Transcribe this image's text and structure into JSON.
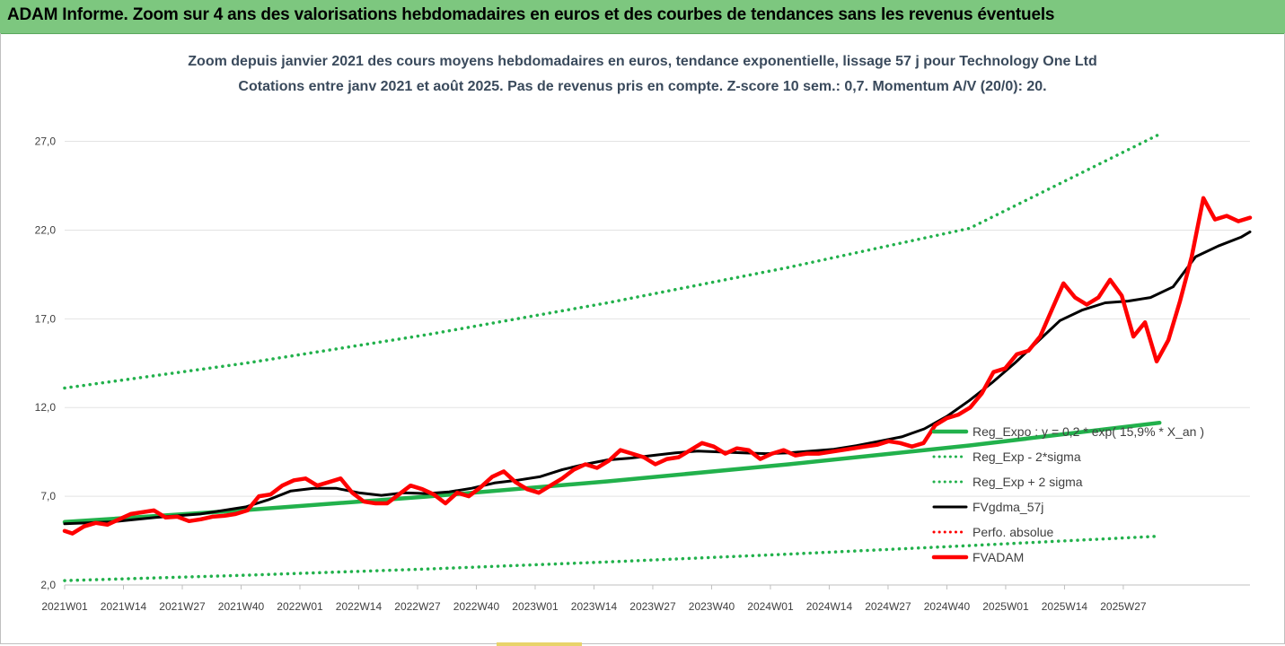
{
  "banner": {
    "title": "ADAM Informe. Zoom sur 4 ans des valorisations hebdomadaires en euros et des courbes de tendances sans les revenus éventuels"
  },
  "chart_data": {
    "type": "line",
    "title": "Zoom depuis janvier 2021 des cours moyens hebdomadaires en euros, tendance exponentielle, lissage 57 j pour Technology One Ltd",
    "subtitle": "Cotations entre janv 2021 et août 2025. Pas de revenus pris en compte. Z-score 10 sem.: 0,7. Momentum A/V (20/0): 20.",
    "xlabel": "",
    "ylabel": "",
    "ylim": [
      2.0,
      29.0
    ],
    "yticks": [
      "2,0",
      "7,0",
      "12,0",
      "17,0",
      "22,0",
      "27,0"
    ],
    "ytick_values": [
      2,
      7,
      12,
      17,
      22,
      27
    ],
    "xticks": [
      "2021W01",
      "2021W14",
      "2021W27",
      "2021W40",
      "2022W01",
      "2022W14",
      "2022W27",
      "2022W40",
      "2023W01",
      "2023W14",
      "2023W27",
      "2023W40",
      "2024W01",
      "2024W14",
      "2024W27",
      "2024W40",
      "2025W01",
      "2025W14",
      "2025W27"
    ],
    "grid": true,
    "legend_position": "right",
    "series": [
      {
        "name": "Reg_Expo : y = 0,2 * exp( 15,9% * X_an )",
        "color": "#22b14c",
        "style": "solid",
        "points": [
          [
            0,
            5.55
          ],
          [
            40,
            6.22
          ],
          [
            80,
            6.98
          ],
          [
            120,
            7.84
          ],
          [
            160,
            8.8
          ],
          [
            200,
            9.86
          ],
          [
            242,
            11.14
          ]
        ]
      },
      {
        "name": "Reg_Exp - 2*sigma",
        "color": "#22b14c",
        "style": "dotted",
        "points": [
          [
            0,
            2.25
          ],
          [
            40,
            2.55
          ],
          [
            80,
            2.9
          ],
          [
            120,
            3.3
          ],
          [
            160,
            3.74
          ],
          [
            200,
            4.22
          ],
          [
            242,
            4.75
          ]
        ]
      },
      {
        "name": "Reg_Exp + 2 sigma",
        "color": "#22b14c",
        "style": "dotted",
        "points": [
          [
            0,
            13.1
          ],
          [
            40,
            14.5
          ],
          [
            80,
            16.1
          ],
          [
            120,
            17.9
          ],
          [
            160,
            19.9
          ],
          [
            200,
            22.1
          ],
          [
            242,
            27.4
          ]
        ]
      },
      {
        "name": "FVgdma_57j",
        "color": "#000000",
        "style": "solid",
        "points": [
          [
            0,
            5.45
          ],
          [
            10,
            5.55
          ],
          [
            20,
            5.8
          ],
          [
            30,
            6.0
          ],
          [
            40,
            6.4
          ],
          [
            45,
            6.8
          ],
          [
            50,
            7.3
          ],
          [
            55,
            7.45
          ],
          [
            60,
            7.45
          ],
          [
            65,
            7.2
          ],
          [
            70,
            7.05
          ],
          [
            75,
            7.2
          ],
          [
            80,
            7.15
          ],
          [
            85,
            7.25
          ],
          [
            90,
            7.45
          ],
          [
            95,
            7.75
          ],
          [
            100,
            7.9
          ],
          [
            105,
            8.1
          ],
          [
            110,
            8.5
          ],
          [
            115,
            8.8
          ],
          [
            120,
            9.05
          ],
          [
            125,
            9.15
          ],
          [
            130,
            9.3
          ],
          [
            135,
            9.45
          ],
          [
            140,
            9.55
          ],
          [
            145,
            9.5
          ],
          [
            150,
            9.45
          ],
          [
            155,
            9.4
          ],
          [
            160,
            9.45
          ],
          [
            165,
            9.55
          ],
          [
            170,
            9.65
          ],
          [
            175,
            9.85
          ],
          [
            180,
            10.1
          ],
          [
            185,
            10.35
          ],
          [
            190,
            10.8
          ],
          [
            195,
            11.5
          ],
          [
            200,
            12.4
          ],
          [
            205,
            13.4
          ],
          [
            210,
            14.5
          ],
          [
            215,
            15.7
          ],
          [
            220,
            16.9
          ],
          [
            225,
            17.5
          ],
          [
            230,
            17.9
          ],
          [
            235,
            18.0
          ],
          [
            240,
            18.2
          ],
          [
            245,
            18.8
          ],
          [
            250,
            20.5
          ],
          [
            255,
            21.1
          ],
          [
            260,
            21.6
          ],
          [
            262,
            21.9
          ]
        ]
      },
      {
        "name": "Perfo. absolue",
        "color": "#ff0000",
        "style": "dotted",
        "points": []
      },
      {
        "name": "FVADAM",
        "color": "#ff0000",
        "style": "solid",
        "points": [
          [
            0,
            5.05
          ],
          [
            2,
            4.9
          ],
          [
            5,
            5.3
          ],
          [
            8,
            5.5
          ],
          [
            11,
            5.4
          ],
          [
            14,
            5.7
          ],
          [
            17,
            6.0
          ],
          [
            20,
            6.1
          ],
          [
            23,
            6.2
          ],
          [
            26,
            5.8
          ],
          [
            29,
            5.85
          ],
          [
            32,
            5.6
          ],
          [
            35,
            5.7
          ],
          [
            38,
            5.85
          ],
          [
            41,
            5.9
          ],
          [
            44,
            6.0
          ],
          [
            47,
            6.2
          ],
          [
            50,
            7.0
          ],
          [
            53,
            7.1
          ],
          [
            56,
            7.6
          ],
          [
            59,
            7.9
          ],
          [
            62,
            8.0
          ],
          [
            65,
            7.6
          ],
          [
            68,
            7.8
          ],
          [
            71,
            8.0
          ],
          [
            74,
            7.2
          ],
          [
            77,
            6.7
          ],
          [
            80,
            6.6
          ],
          [
            83,
            6.6
          ],
          [
            86,
            7.1
          ],
          [
            89,
            7.6
          ],
          [
            92,
            7.4
          ],
          [
            95,
            7.1
          ],
          [
            98,
            6.6
          ],
          [
            101,
            7.2
          ],
          [
            104,
            7.0
          ],
          [
            107,
            7.5
          ],
          [
            110,
            8.1
          ],
          [
            113,
            8.4
          ],
          [
            116,
            7.8
          ],
          [
            119,
            7.4
          ],
          [
            122,
            7.2
          ],
          [
            125,
            7.6
          ],
          [
            128,
            8.0
          ],
          [
            131,
            8.5
          ],
          [
            134,
            8.8
          ],
          [
            137,
            8.6
          ],
          [
            140,
            9.0
          ],
          [
            143,
            9.6
          ],
          [
            146,
            9.4
          ],
          [
            149,
            9.2
          ],
          [
            152,
            8.8
          ],
          [
            155,
            9.1
          ],
          [
            158,
            9.2
          ],
          [
            161,
            9.6
          ],
          [
            164,
            10.0
          ],
          [
            167,
            9.8
          ],
          [
            170,
            9.4
          ],
          [
            173,
            9.7
          ],
          [
            176,
            9.6
          ],
          [
            179,
            9.1
          ],
          [
            182,
            9.4
          ],
          [
            185,
            9.6
          ],
          [
            188,
            9.3
          ],
          [
            191,
            9.4
          ],
          [
            194,
            9.4
          ],
          [
            197,
            9.5
          ],
          [
            200,
            9.6
          ],
          [
            203,
            9.7
          ],
          [
            206,
            9.8
          ],
          [
            209,
            9.9
          ],
          [
            212,
            10.1
          ],
          [
            215,
            10.0
          ],
          [
            218,
            9.8
          ],
          [
            221,
            10.0
          ],
          [
            224,
            11.0
          ],
          [
            227,
            11.4
          ],
          [
            230,
            11.6
          ],
          [
            233,
            12.0
          ],
          [
            236,
            12.8
          ],
          [
            239,
            14.0
          ],
          [
            242,
            14.2
          ],
          [
            245,
            15.0
          ],
          [
            248,
            15.2
          ],
          [
            251,
            16.0
          ],
          [
            254,
            17.5
          ],
          [
            257,
            19.0
          ],
          [
            260,
            18.2
          ],
          [
            263,
            17.8
          ],
          [
            266,
            18.2
          ],
          [
            269,
            19.2
          ],
          [
            272,
            18.3
          ],
          [
            275,
            16.0
          ],
          [
            278,
            16.8
          ],
          [
            281,
            14.6
          ],
          [
            284,
            15.8
          ],
          [
            287,
            18.0
          ],
          [
            290,
            20.5
          ],
          [
            293,
            23.8
          ],
          [
            296,
            22.6
          ],
          [
            299,
            22.8
          ],
          [
            302,
            22.5
          ],
          [
            305,
            22.7
          ]
        ]
      }
    ]
  }
}
